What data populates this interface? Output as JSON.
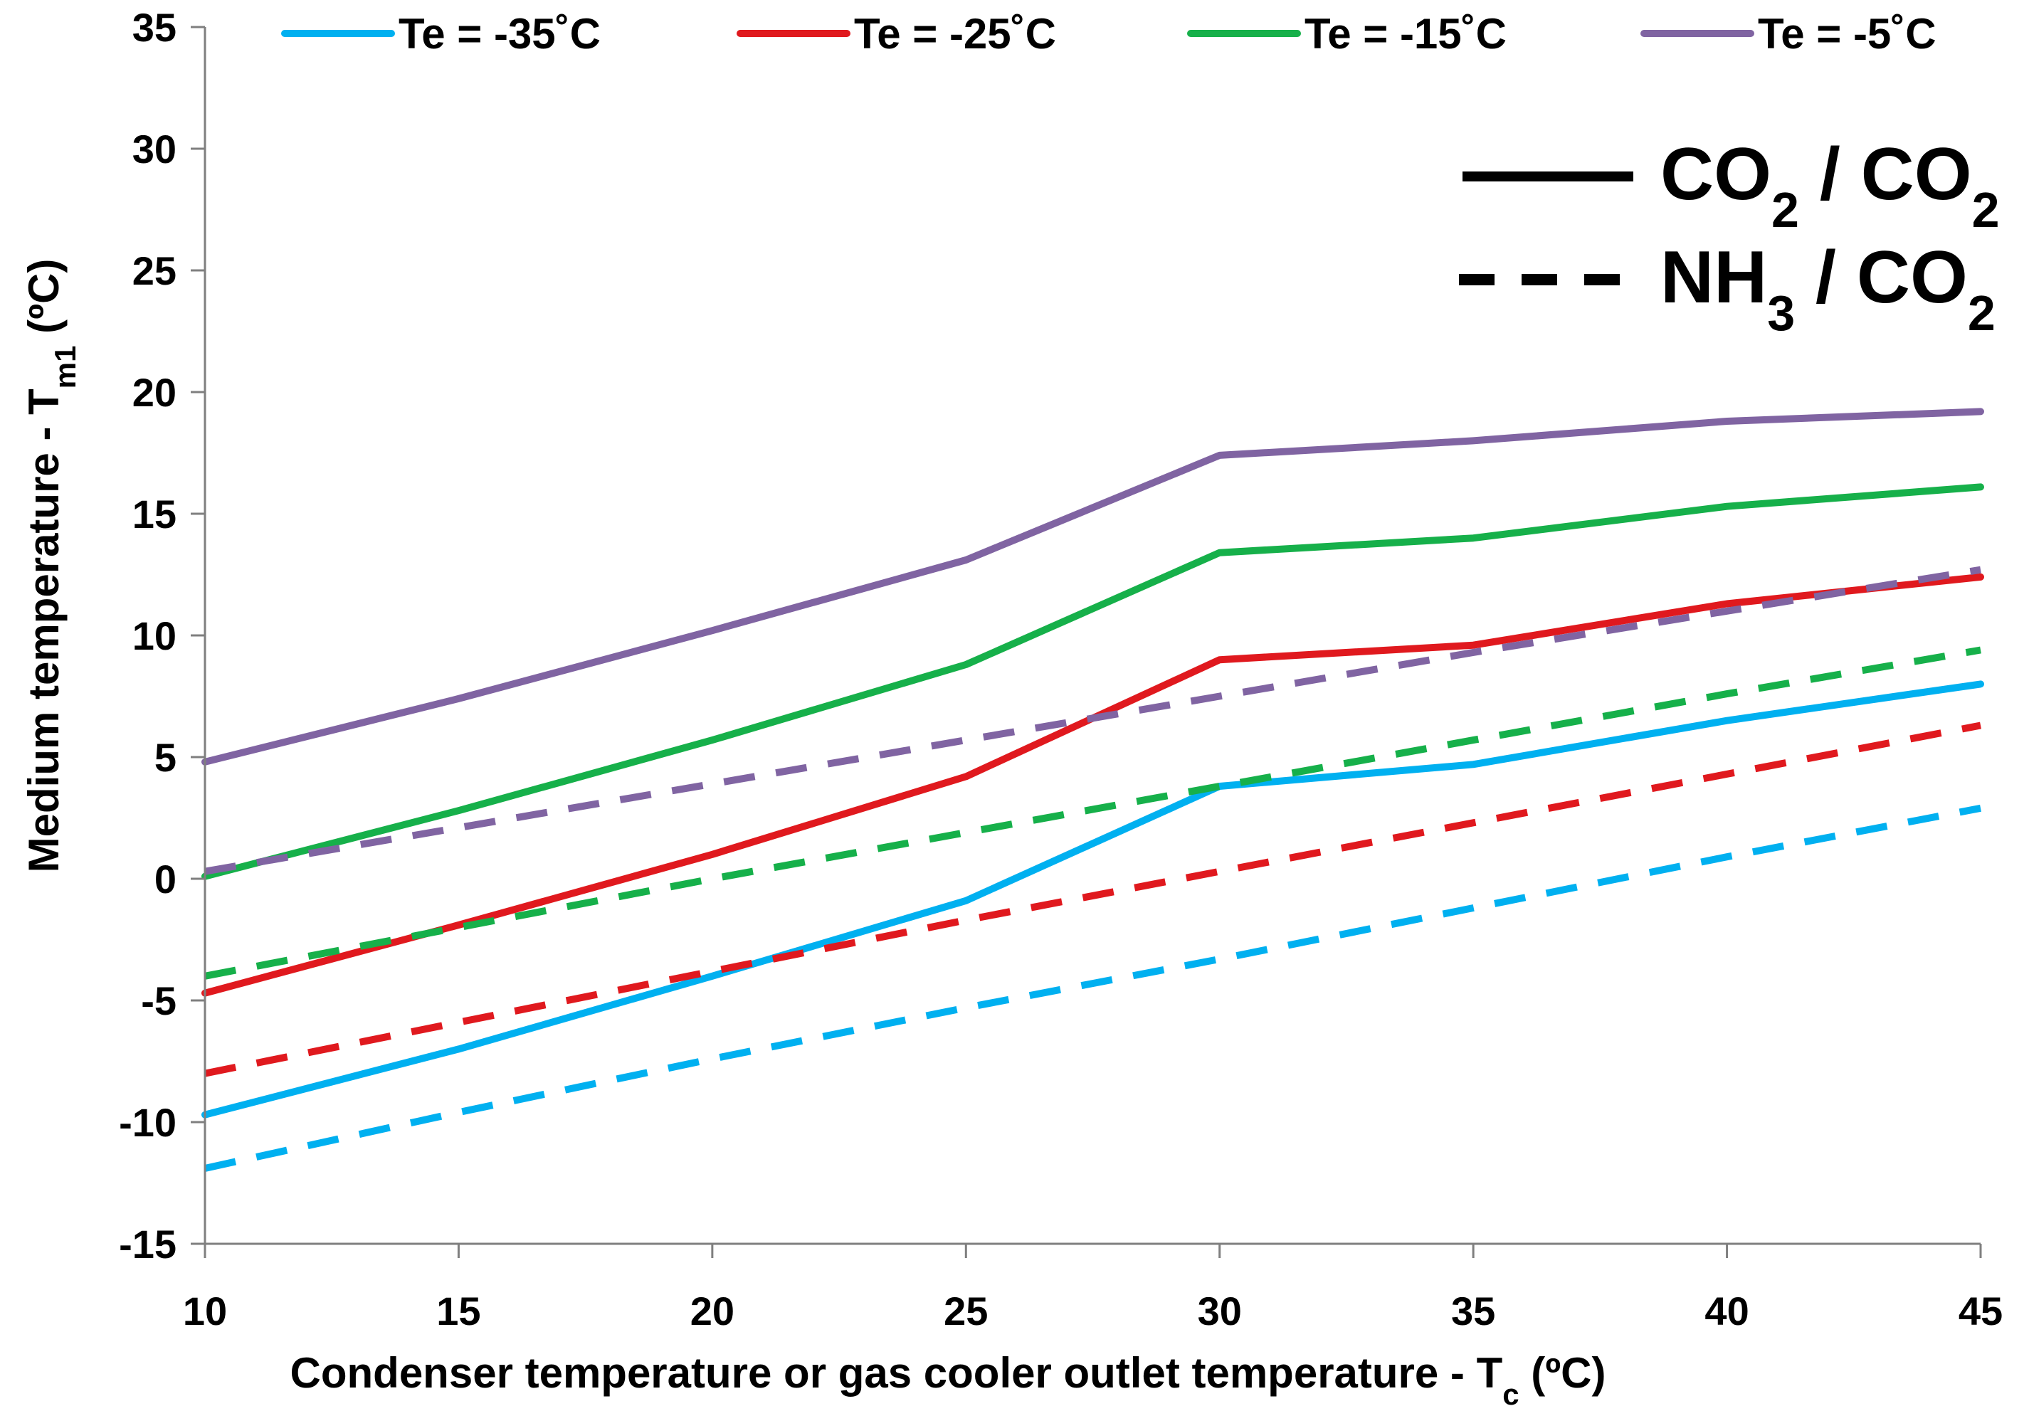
{
  "chart_data": {
    "type": "line",
    "title": "",
    "xlabel": {
      "main": "Condenser temperature or gas cooler outlet temperature - T",
      "sub": "c",
      "unit": " (ºC)"
    },
    "ylabel": {
      "main": "Medium temperature - T",
      "sub": "m1",
      "unit": " (ºC)"
    },
    "xlim": [
      10,
      45
    ],
    "ylim": [
      -15,
      35
    ],
    "xticks": [
      10,
      15,
      20,
      25,
      30,
      35,
      40,
      45
    ],
    "yticks": [
      -15,
      -10,
      -5,
      0,
      5,
      10,
      15,
      20,
      25,
      30,
      35
    ],
    "x": [
      10,
      15,
      20,
      25,
      30,
      35,
      40,
      45
    ],
    "series": [
      {
        "name": "Te = -35˚C",
        "group": "te_m35",
        "color": "#00B0F0",
        "style": "solid",
        "values": [
          -9.7,
          -7.0,
          -4.0,
          -0.9,
          3.8,
          4.7,
          6.5,
          8.0
        ]
      },
      {
        "name": "Te = -25˚C",
        "group": "te_m25",
        "color": "#E0191E",
        "style": "solid",
        "values": [
          -4.7,
          -1.9,
          1.0,
          4.2,
          9.0,
          9.6,
          11.3,
          12.4
        ]
      },
      {
        "name": "Te = -15˚C",
        "group": "te_m15",
        "color": "#16B04A",
        "style": "solid",
        "values": [
          0.1,
          2.8,
          5.7,
          8.8,
          13.4,
          14.0,
          15.3,
          16.1
        ]
      },
      {
        "name": "Te = -5˚C",
        "group": "te_m5",
        "color": "#8064A2",
        "style": "solid",
        "values": [
          4.8,
          7.4,
          10.2,
          13.1,
          17.4,
          18.0,
          18.8,
          19.2
        ]
      },
      {
        "name": "Te = -35˚C",
        "group": "te_m35",
        "color": "#00B0F0",
        "style": "dashed",
        "values": [
          -11.9,
          -9.6,
          -7.4,
          -5.3,
          -3.3,
          -1.2,
          0.9,
          2.9
        ]
      },
      {
        "name": "Te = -25˚C",
        "group": "te_m25",
        "color": "#E0191E",
        "style": "dashed",
        "values": [
          -8.0,
          -5.9,
          -3.8,
          -1.7,
          0.3,
          2.3,
          4.3,
          6.3
        ]
      },
      {
        "name": "Te = -15˚C",
        "group": "te_m15",
        "color": "#16B04A",
        "style": "dashed",
        "values": [
          -4.0,
          -2.0,
          0.0,
          1.9,
          3.8,
          5.7,
          7.6,
          9.4
        ]
      },
      {
        "name": "Te = -5˚C",
        "group": "te_m5",
        "color": "#8064A2",
        "style": "dashed",
        "values": [
          0.3,
          2.1,
          3.9,
          5.7,
          7.5,
          9.3,
          11.0,
          12.7
        ]
      }
    ],
    "color_legend": [
      {
        "label": "Te = -35˚C",
        "color": "#00B0F0"
      },
      {
        "label": "Te = -25˚C",
        "color": "#E0191E"
      },
      {
        "label": "Te = -15˚C",
        "color": "#16B04A"
      },
      {
        "label": "Te = -5˚C",
        "color": "#8064A2"
      }
    ],
    "style_legend": [
      {
        "style": "solid",
        "left": "CO",
        "left_sub": "2",
        "sep": " / ",
        "right": "CO",
        "right_sub": "2"
      },
      {
        "style": "dashed",
        "left": "NH",
        "left_sub": "3",
        "sep": " / ",
        "right": "CO",
        "right_sub": "2"
      }
    ],
    "color_legend_position": "top",
    "style_legend_position": "top-right",
    "grid": false
  }
}
